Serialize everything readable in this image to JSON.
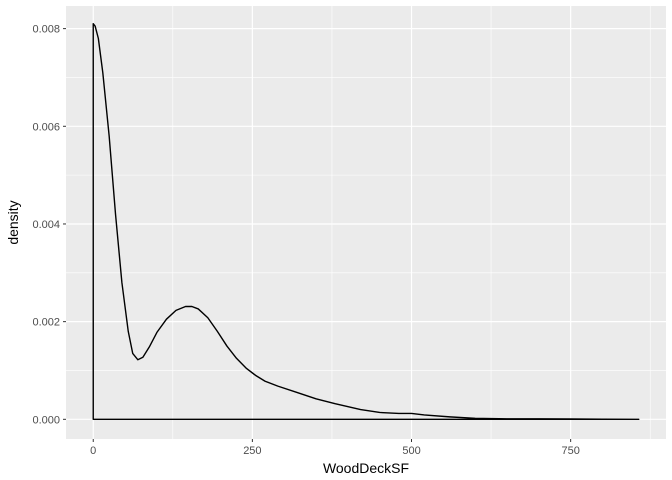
{
  "chart_data": {
    "type": "area",
    "title": "",
    "xlabel": "WoodDeckSF",
    "ylabel": "density",
    "xlim": [
      -42.8,
      899.8
    ],
    "ylim": [
      -0.000403,
      0.008463
    ],
    "x_ticks": [
      0,
      250,
      500,
      750
    ],
    "x_tick_labels": [
      "0",
      "250",
      "500",
      "750"
    ],
    "y_ticks": [
      0,
      0.002,
      0.004,
      0.006,
      0.008
    ],
    "y_tick_labels": [
      "0.000",
      "0.002",
      "0.004",
      "0.006",
      "0.008"
    ],
    "grid": true,
    "legend": "none",
    "series": [
      {
        "x": [
          0,
          3,
          8,
          15,
          25,
          35,
          45,
          55,
          62,
          70,
          78,
          88,
          100,
          115,
          130,
          145,
          155,
          165,
          180,
          195,
          210,
          225,
          240,
          255,
          270,
          290,
          320,
          350,
          380,
          420,
          450,
          480,
          500,
          520,
          560,
          600,
          650,
          700,
          750,
          800,
          857
        ],
        "y": [
          0.0081,
          0.00805,
          0.0078,
          0.0071,
          0.0058,
          0.0042,
          0.0028,
          0.0018,
          0.00135,
          0.00122,
          0.00127,
          0.00148,
          0.00178,
          0.00205,
          0.00223,
          0.00231,
          0.00231,
          0.00226,
          0.00208,
          0.0018,
          0.0015,
          0.00125,
          0.00105,
          0.0009,
          0.00078,
          0.00068,
          0.00055,
          0.00042,
          0.00032,
          0.0002,
          0.00014,
          0.00012,
          0.00012,
          9e-05,
          5e-05,
          2e-05,
          1e-05,
          1e-05,
          8e-06,
          3e-06,
          0.0
        ]
      }
    ],
    "colors": {
      "panel_background": "#ebebeb",
      "grid_major": "#ffffff",
      "line": "#000000",
      "tick_label": "#4d4d4d"
    }
  }
}
